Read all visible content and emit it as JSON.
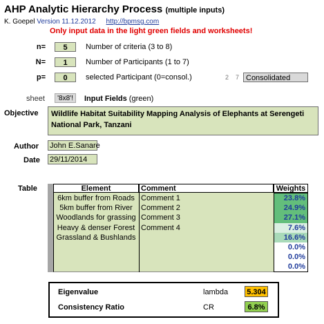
{
  "header": {
    "title": "AHP Analytic Hierarchy Process",
    "subtitle": "(multiple inputs)",
    "author": "K. Goepel",
    "version": "Version 11.12.2012",
    "link": "http://bpmsg.com",
    "warning": "Only input data in the light green fields and worksheets!"
  },
  "params": {
    "n": {
      "label": "n=",
      "value": "5",
      "desc": "Number of criteria (3 to 8)"
    },
    "N": {
      "label": "N=",
      "value": "1",
      "desc": "Number of Participants (1 to 7)"
    },
    "p": {
      "label": "p=",
      "value": "0",
      "desc": "selected Participant (0=consol.)"
    },
    "small_a": "2",
    "small_b": "7",
    "consolidated": "Consolidated"
  },
  "sheet": {
    "label": "sheet",
    "value": "'8x8'!",
    "input_fields": "Input Fields",
    "input_fields_note": "(green)"
  },
  "objective": {
    "label": "Objective",
    "text": "Wildlife Habitat Suitability Mapping Analysis of Elephants at Serengeti National Park, Tanzani"
  },
  "author": {
    "label": "Author",
    "value": "John E.Sanare"
  },
  "date": {
    "label": "Date",
    "value": "29/11/2014"
  },
  "table": {
    "label": "Table",
    "headers": {
      "element": "Element",
      "comment": "Comment",
      "weights": "Weights"
    },
    "rows": [
      {
        "element": "6km buffer from Roads",
        "comment": "Comment 1",
        "weight": "23.8%"
      },
      {
        "element": "5km buffer from River",
        "comment": "Comment 2",
        "weight": "24.9%"
      },
      {
        "element": "Woodlands for grassing",
        "comment": "Comment 3",
        "weight": "27.1%"
      },
      {
        "element": "Heavy & denser Forest",
        "comment": "Comment 4",
        "weight": "7.6%"
      },
      {
        "element": "Grassland & Bushlands",
        "comment": "",
        "weight": "16.6%"
      },
      {
        "element": "",
        "comment": "",
        "weight": "0.0%"
      },
      {
        "element": "",
        "comment": "",
        "weight": "0.0%"
      },
      {
        "element": "",
        "comment": "",
        "weight": "0.0%"
      }
    ],
    "weight_colors": [
      "#63be7b",
      "#63be7b",
      "#63be7b",
      "#dbefe2",
      "#a9dab9",
      "#ffffff",
      "#ffffff",
      "#ffffff"
    ]
  },
  "results": {
    "eigen_label": "Eigenvalue",
    "lambda_label": "lambda",
    "lambda_value": "5.304",
    "lambda_color": "#ffc000",
    "cr_label": "Consistency Ratio",
    "cr_short": "CR",
    "cr_value": "6.8%",
    "cr_color": "#92d050"
  }
}
